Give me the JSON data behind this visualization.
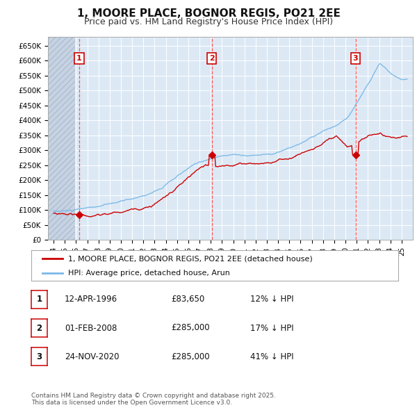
{
  "title": "1, MOORE PLACE, BOGNOR REGIS, PO21 2EE",
  "subtitle": "Price paid vs. HM Land Registry's House Price Index (HPI)",
  "title_fontsize": 11,
  "subtitle_fontsize": 9,
  "background_color": "#ffffff",
  "plot_bg_color": "#dce9f5",
  "grid_color": "#ffffff",
  "ylim": [
    0,
    680000
  ],
  "yticks": [
    0,
    50000,
    100000,
    150000,
    200000,
    250000,
    300000,
    350000,
    400000,
    450000,
    500000,
    550000,
    600000,
    650000
  ],
  "ytick_labels": [
    "£0",
    "£50K",
    "£100K",
    "£150K",
    "£200K",
    "£250K",
    "£300K",
    "£350K",
    "£400K",
    "£450K",
    "£500K",
    "£550K",
    "£600K",
    "£650K"
  ],
  "xlim_start": 1993.5,
  "xlim_end": 2026.0,
  "xticks": [
    1994,
    1995,
    1996,
    1997,
    1998,
    1999,
    2000,
    2001,
    2002,
    2003,
    2004,
    2005,
    2006,
    2007,
    2008,
    2009,
    2010,
    2011,
    2012,
    2013,
    2014,
    2015,
    2016,
    2017,
    2018,
    2019,
    2020,
    2021,
    2022,
    2023,
    2024,
    2025
  ],
  "hpi_color": "#7ab8e8",
  "price_color": "#cc0000",
  "vline_color": "#ff5555",
  "sales": [
    {
      "year": 1996.28,
      "price": 83650,
      "label": "1"
    },
    {
      "year": 2008.08,
      "price": 285000,
      "label": "2"
    },
    {
      "year": 2020.9,
      "price": 285000,
      "label": "3"
    }
  ],
  "hatch_end_year": 1995.9,
  "legend_label_red": "1, MOORE PLACE, BOGNOR REGIS, PO21 2EE (detached house)",
  "legend_label_blue": "HPI: Average price, detached house, Arun",
  "table_data": [
    {
      "num": "1",
      "date": "12-APR-1996",
      "price": "£83,650",
      "pct": "12% ↓ HPI"
    },
    {
      "num": "2",
      "date": "01-FEB-2008",
      "price": "£285,000",
      "pct": "17% ↓ HPI"
    },
    {
      "num": "3",
      "date": "24-NOV-2020",
      "price": "£285,000",
      "pct": "41% ↓ HPI"
    }
  ],
  "footnote": "Contains HM Land Registry data © Crown copyright and database right 2025.\nThis data is licensed under the Open Government Licence v3.0."
}
